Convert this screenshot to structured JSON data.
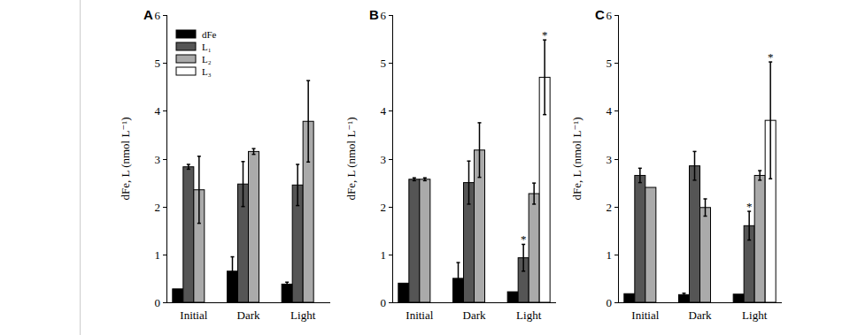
{
  "chart_data": [
    {
      "type": "bar",
      "title": "A",
      "ylabel": "dFe, L (nmol L⁻¹)",
      "categories": [
        "Initial",
        "Dark",
        "Light"
      ],
      "ylim": [
        0,
        6
      ],
      "yticks": [
        0,
        1,
        2,
        3,
        4,
        5,
        6
      ],
      "legend": "upper left",
      "series": [
        {
          "name": "dFe",
          "color": "#000000",
          "values": [
            0.28,
            0.65,
            0.38
          ],
          "errors": [
            null,
            0.3,
            0.04
          ],
          "annotations": [
            null,
            null,
            null
          ]
        },
        {
          "name": "L₁",
          "color": "#555555",
          "values": [
            2.83,
            2.47,
            2.45
          ],
          "errors": [
            0.05,
            0.47,
            0.43
          ],
          "annotations": [
            null,
            null,
            null
          ]
        },
        {
          "name": "L₂",
          "color": "#aaaaaa",
          "values": [
            2.35,
            3.15,
            3.78
          ],
          "errors": [
            0.7,
            0.06,
            0.85
          ],
          "annotations": [
            null,
            null,
            null
          ]
        },
        {
          "name": "L₃",
          "color": "#ffffff",
          "values": [
            null,
            null,
            null
          ],
          "errors": [
            null,
            null,
            null
          ],
          "annotations": [
            null,
            null,
            null
          ]
        }
      ]
    },
    {
      "type": "bar",
      "title": "B",
      "ylabel": "dFe, L (nmol L⁻¹)",
      "categories": [
        "Initial",
        "Dark",
        "Light"
      ],
      "ylim": [
        0,
        6
      ],
      "yticks": [
        0,
        1,
        2,
        3,
        4,
        5,
        6
      ],
      "series": [
        {
          "name": "dFe",
          "color": "#000000",
          "values": [
            0.4,
            0.5,
            0.22
          ],
          "errors": [
            null,
            0.33,
            null
          ],
          "annotations": [
            null,
            null,
            null
          ]
        },
        {
          "name": "L₁",
          "color": "#555555",
          "values": [
            2.57,
            2.5,
            0.93
          ],
          "errors": [
            0.03,
            0.45,
            0.28
          ],
          "annotations": [
            null,
            null,
            "*"
          ]
        },
        {
          "name": "L₂",
          "color": "#aaaaaa",
          "values": [
            2.57,
            3.18,
            2.27
          ],
          "errors": [
            0.03,
            0.57,
            0.22
          ],
          "annotations": [
            null,
            null,
            null
          ]
        },
        {
          "name": "L₃",
          "color": "#ffffff",
          "values": [
            null,
            null,
            4.7
          ],
          "errors": [
            null,
            null,
            0.78
          ],
          "annotations": [
            null,
            null,
            "*"
          ]
        }
      ]
    },
    {
      "type": "bar",
      "title": "C",
      "ylabel": "dFe, L (nmol L⁻¹)",
      "categories": [
        "Initial",
        "Dark",
        "Light"
      ],
      "ylim": [
        0,
        6
      ],
      "yticks": [
        0,
        1,
        2,
        3,
        4,
        5,
        6
      ],
      "series": [
        {
          "name": "dFe",
          "color": "#000000",
          "values": [
            0.18,
            0.16,
            0.17
          ],
          "errors": [
            null,
            0.03,
            null
          ],
          "annotations": [
            null,
            null,
            null
          ]
        },
        {
          "name": "L₁",
          "color": "#555555",
          "values": [
            2.65,
            2.85,
            1.6
          ],
          "errors": [
            0.15,
            0.3,
            0.3
          ],
          "annotations": [
            null,
            null,
            "*"
          ]
        },
        {
          "name": "L₂",
          "color": "#aaaaaa",
          "values": [
            2.4,
            1.98,
            2.65
          ],
          "errors": [
            null,
            0.18,
            0.1
          ],
          "annotations": [
            null,
            null,
            null
          ]
        },
        {
          "name": "L₃",
          "color": "#ffffff",
          "values": [
            null,
            null,
            3.8
          ],
          "errors": [
            null,
            null,
            1.22
          ],
          "annotations": [
            null,
            null,
            "*"
          ]
        }
      ]
    }
  ]
}
